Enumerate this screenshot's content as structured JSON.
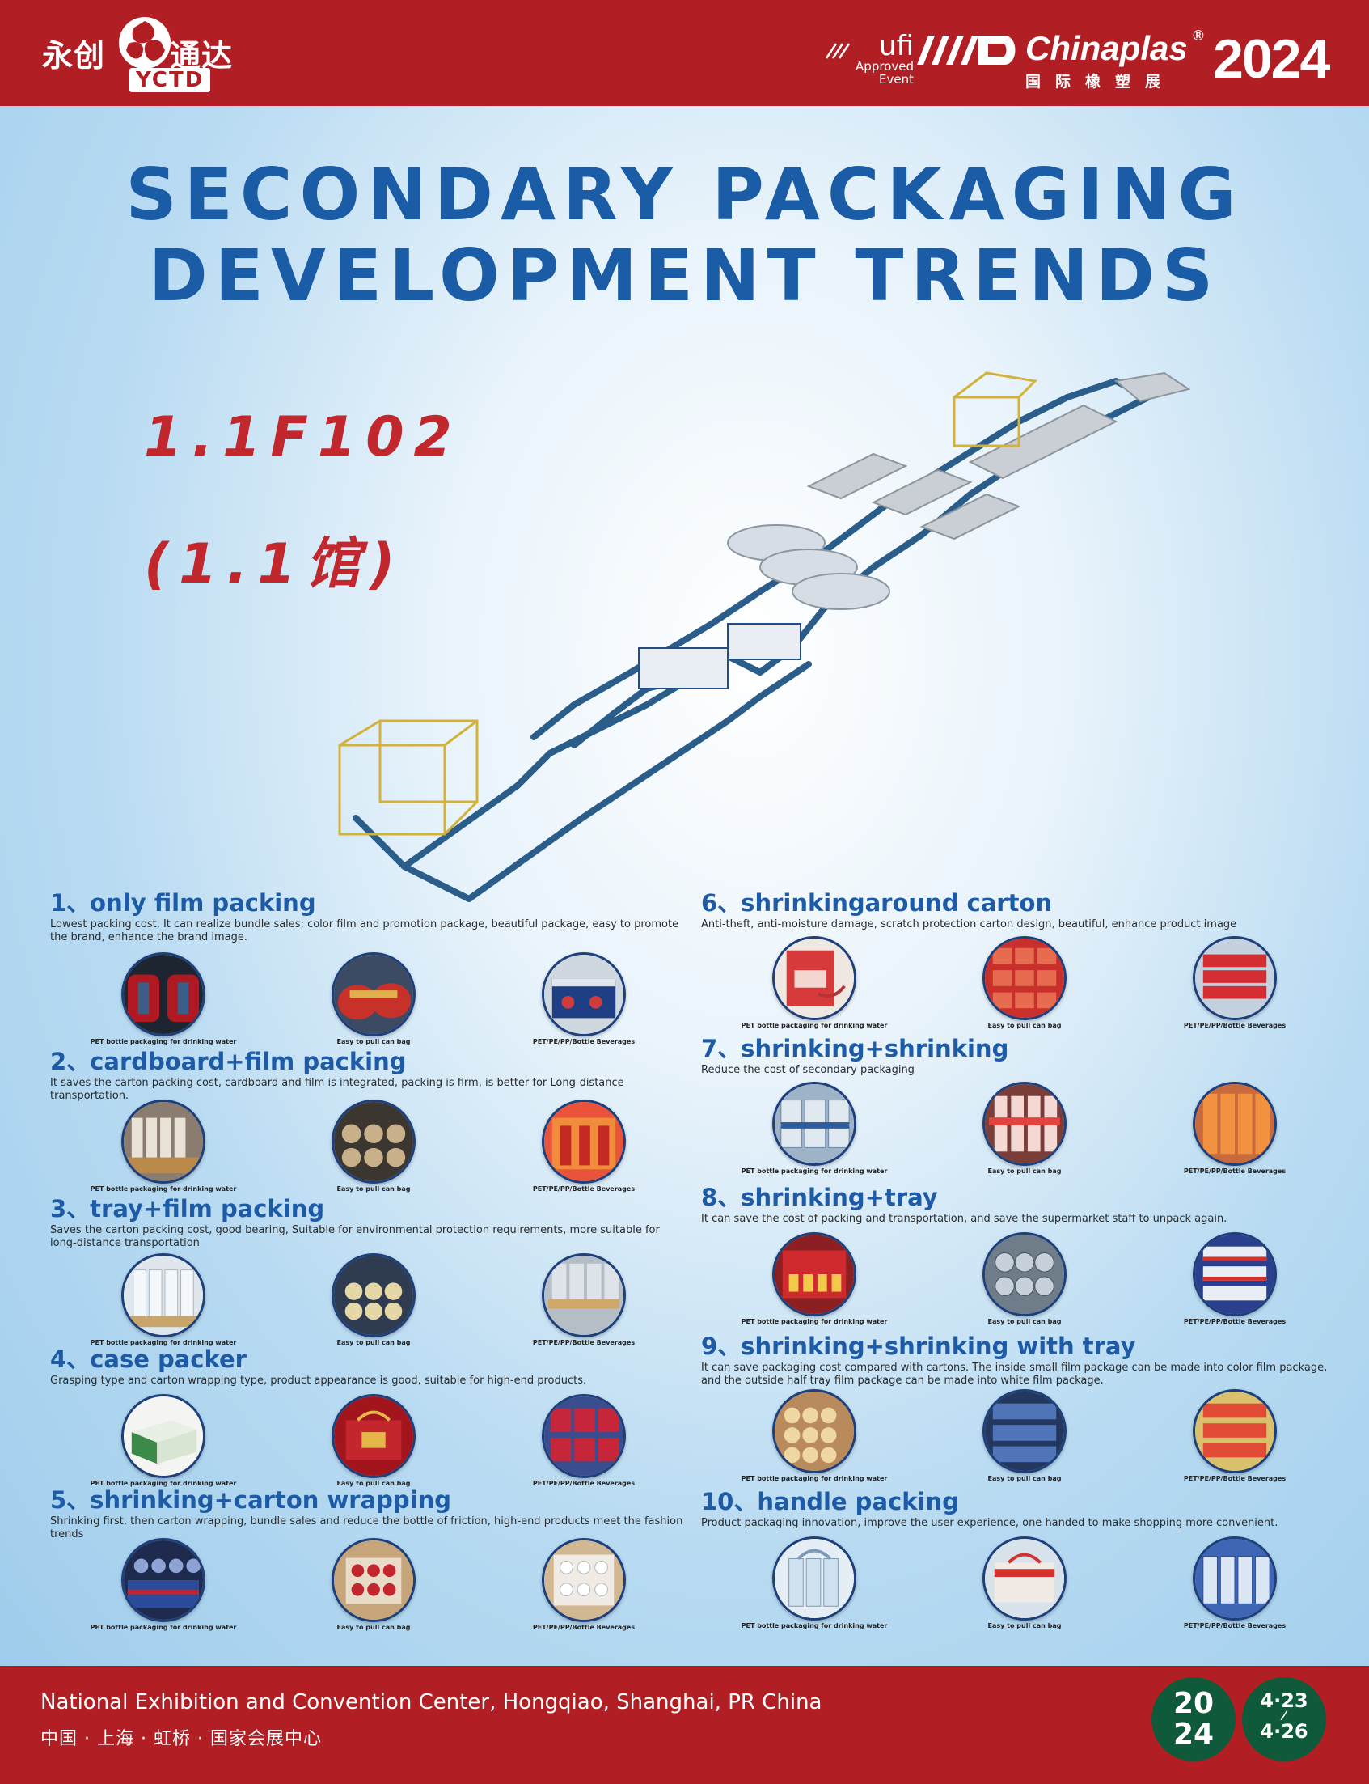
{
  "header": {
    "logo_cn_left": "永创",
    "logo_cn_right": "通达",
    "logo_en": "YCTD",
    "ufi_name": "ufi",
    "ufi_line1": "Approved",
    "ufi_line2": "Event",
    "chinaplas_name": "Chinaplas",
    "chinaplas_reg": "®",
    "chinaplas_cn": "国际橡塑展",
    "chinaplas_year": "2024"
  },
  "hero": {
    "title_line1": "SECONDARY PACKAGING",
    "title_line2": "DEVELOPMENT TRENDS",
    "booth": "1.1F102",
    "hall": "(1.1馆)"
  },
  "captions": {
    "a": "PET bottle packaging for drinking water",
    "b": "Easy to pull can bag",
    "c": "PET/PE/PP/Bottle Beverages"
  },
  "sections": [
    {
      "title": "1、only film packing",
      "desc": "Lowest packing cost, It can realize bundle sales; color film and promotion package, beautiful package, easy to promote the brand, enhance the brand image."
    },
    {
      "title": "2、cardboard+film packing",
      "desc": "It saves the carton packing cost, cardboard and film is integrated, packing is firm, is better for Long-distance transportation."
    },
    {
      "title": "3、tray+film packing",
      "desc": "Saves the carton packing cost, good bearing, Suitable for environmental protection requirements, more suitable for long-distance transportation"
    },
    {
      "title": "4、case packer",
      "desc": "Grasping type and carton wrapping type, product appearance is good, suitable for high-end products."
    },
    {
      "title": "5、shrinking+carton wrapping",
      "desc": "Shrinking first, then carton wrapping, bundle sales and reduce the bottle of friction, high-end products meet the fashion trends"
    },
    {
      "title": "6、shrinkingaround carton",
      "desc": "Anti-theft, anti-moisture damage, scratch protection carton design, beautiful, enhance product image"
    },
    {
      "title": "7、shrinking+shrinking",
      "desc": "Reduce the cost of secondary packaging"
    },
    {
      "title": "8、shrinking+tray",
      "desc": "It can save the cost of packing and transportation, and save the supermarket staff to unpack again."
    },
    {
      "title": "9、shrinking+shrinking with tray",
      "desc": "It can save packaging cost compared with cartons. The inside small film package can be made into color film package, and the outside half tray film package can be made into white film package."
    },
    {
      "title": "10、handle packing",
      "desc": "Product packaging innovation, improve the user experience, one handed to make shopping more convenient."
    }
  ],
  "footer": {
    "venue_en": "National Exhibition and Convention Center, Hongqiao, Shanghai, PR China",
    "venue_cn": "中国 · 上海 · 虹桥 · 国家会展中心",
    "year_top": "20",
    "year_bottom": "24",
    "date_start": "4·23",
    "date_end": "4·26"
  },
  "colors": {
    "brand_red": "#b11f24",
    "title_blue": "#1a5ca5",
    "booth_red": "#c1272d",
    "date_green": "#0f5a3a"
  }
}
